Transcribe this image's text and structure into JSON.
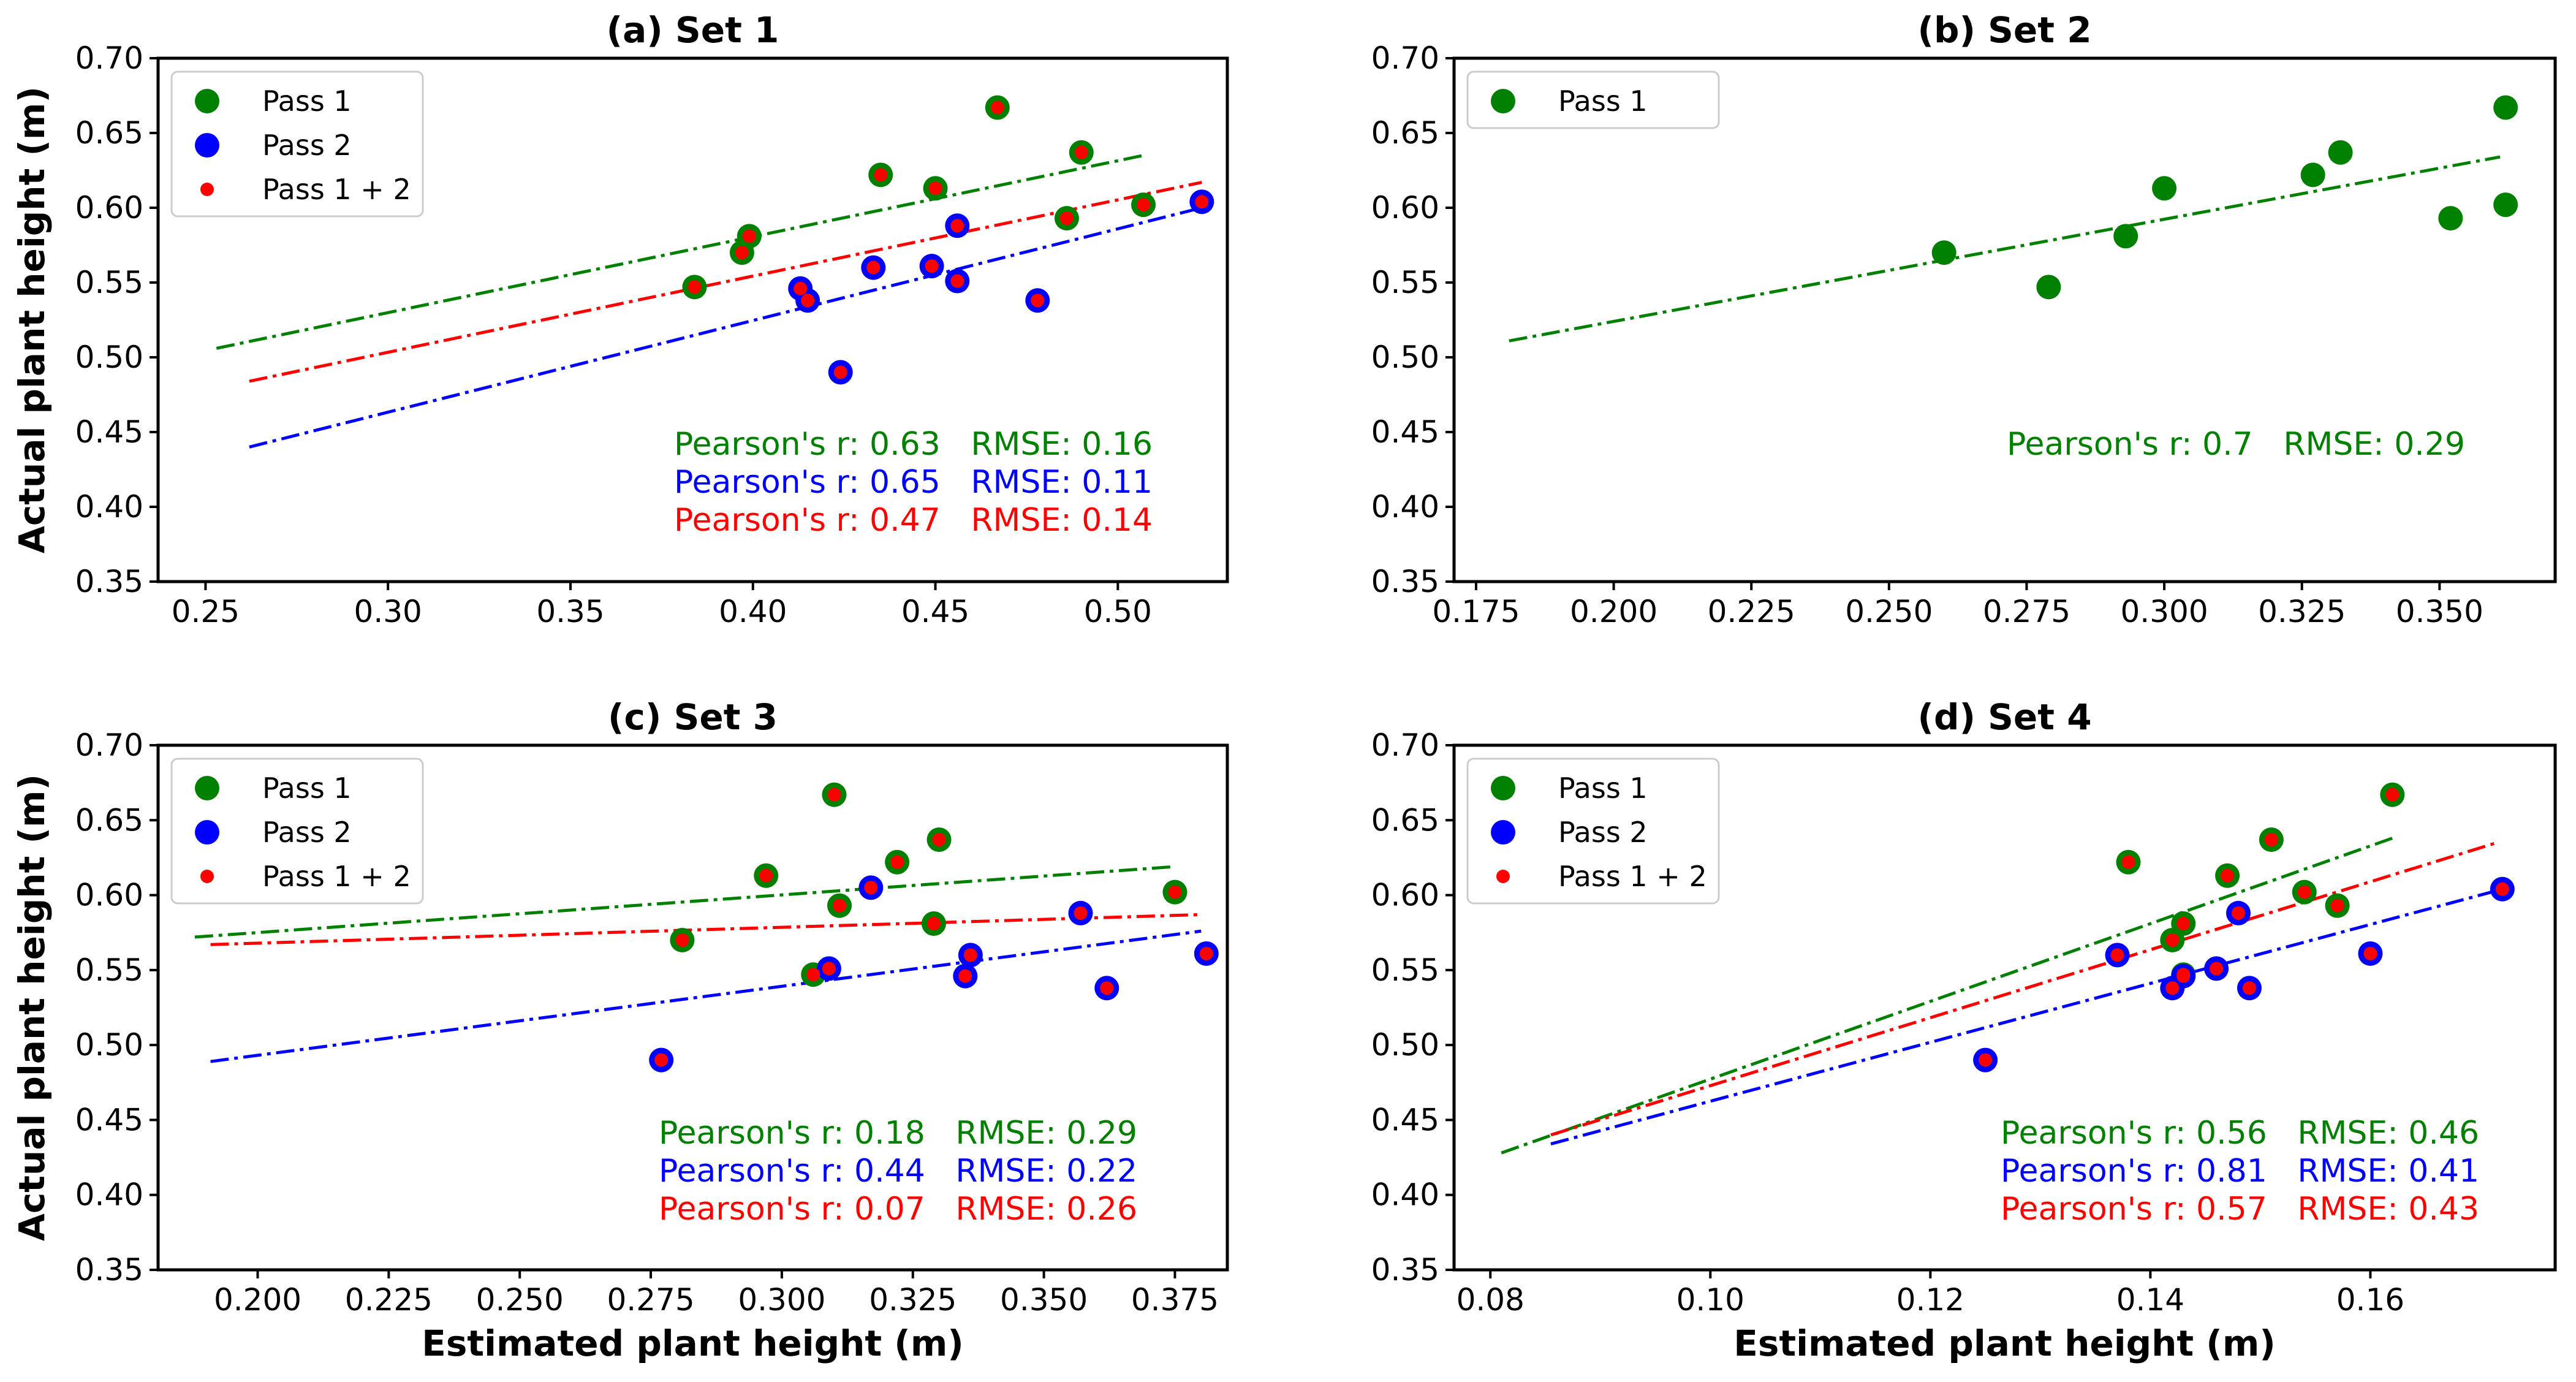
{
  "figure": {
    "ylabel": "Actual plant height (m)",
    "xlabel": "Estimated plant height (m)"
  },
  "chart_data": [
    {
      "type": "scatter",
      "panel": "a",
      "title": "(a)  Set 1",
      "xlabel": "",
      "ylabel": "Actual plant height (m)",
      "xlim": [
        0.237,
        0.53
      ],
      "ylim": [
        0.35,
        0.7
      ],
      "xticks": [
        0.25,
        0.3,
        0.35,
        0.4,
        0.45,
        0.5
      ],
      "xtick_labels": [
        "0.25",
        "0.30",
        "0.35",
        "0.40",
        "0.45",
        "0.50"
      ],
      "yticks": [
        0.35,
        0.4,
        0.45,
        0.5,
        0.55,
        0.6,
        0.65,
        0.7
      ],
      "ytick_labels": [
        "0.35",
        "0.40",
        "0.45",
        "0.50",
        "0.55",
        "0.60",
        "0.65",
        "0.70"
      ],
      "legend_position": "top-left",
      "series": [
        {
          "name": "Pass 1",
          "color": "#008000",
          "points": [
            [
              0.384,
              0.547
            ],
            [
              0.397,
              0.57
            ],
            [
              0.399,
              0.581
            ],
            [
              0.435,
              0.622
            ],
            [
              0.45,
              0.613
            ],
            [
              0.467,
              0.667
            ],
            [
              0.486,
              0.593
            ],
            [
              0.49,
              0.637
            ],
            [
              0.507,
              0.602
            ]
          ]
        },
        {
          "name": "Pass 2",
          "color": "#0000ff",
          "points": [
            [
              0.413,
              0.546
            ],
            [
              0.415,
              0.538
            ],
            [
              0.424,
              0.49
            ],
            [
              0.433,
              0.56
            ],
            [
              0.449,
              0.561
            ],
            [
              0.456,
              0.551
            ],
            [
              0.456,
              0.588
            ],
            [
              0.478,
              0.538
            ],
            [
              0.523,
              0.604
            ]
          ]
        },
        {
          "name": "Pass 1 + 2",
          "color": "#ff0000",
          "points": [
            [
              0.384,
              0.547
            ],
            [
              0.397,
              0.57
            ],
            [
              0.399,
              0.581
            ],
            [
              0.435,
              0.622
            ],
            [
              0.45,
              0.613
            ],
            [
              0.467,
              0.667
            ],
            [
              0.486,
              0.593
            ],
            [
              0.49,
              0.637
            ],
            [
              0.507,
              0.602
            ],
            [
              0.413,
              0.546
            ],
            [
              0.415,
              0.538
            ],
            [
              0.424,
              0.49
            ],
            [
              0.433,
              0.56
            ],
            [
              0.449,
              0.561
            ],
            [
              0.456,
              0.551
            ],
            [
              0.456,
              0.588
            ],
            [
              0.478,
              0.538
            ],
            [
              0.523,
              0.604
            ]
          ]
        }
      ],
      "fit_lines": [
        {
          "color": "#008000",
          "x": [
            0.253,
            0.507
          ],
          "y": [
            0.506,
            0.635
          ]
        },
        {
          "color": "#0000ff",
          "x": [
            0.262,
            0.523
          ],
          "y": [
            0.44,
            0.6
          ]
        },
        {
          "color": "#ff0000",
          "x": [
            0.262,
            0.523
          ],
          "y": [
            0.484,
            0.617
          ]
        }
      ],
      "stats": [
        {
          "text": "Pearson's r: 0.63   RMSE: 0.16",
          "color": "#008000"
        },
        {
          "text": "Pearson's r: 0.65   RMSE: 0.11",
          "color": "#0000ff"
        },
        {
          "text": "Pearson's r: 0.47   RMSE: 0.14",
          "color": "#ff0000"
        }
      ]
    },
    {
      "type": "scatter",
      "panel": "b",
      "title": "(b)  Set 2",
      "xlabel": "",
      "ylabel": "",
      "xlim": [
        0.171,
        0.371
      ],
      "ylim": [
        0.35,
        0.7
      ],
      "xticks": [
        0.175,
        0.2,
        0.225,
        0.25,
        0.275,
        0.3,
        0.325,
        0.35
      ],
      "xtick_labels": [
        "0.175",
        "0.200",
        "0.225",
        "0.250",
        "0.275",
        "0.300",
        "0.325",
        "0.350"
      ],
      "yticks": [
        0.35,
        0.4,
        0.45,
        0.5,
        0.55,
        0.6,
        0.65,
        0.7
      ],
      "ytick_labels": [
        "0.35",
        "0.40",
        "0.45",
        "0.50",
        "0.55",
        "0.60",
        "0.65",
        "0.70"
      ],
      "legend_position": "top-left",
      "series": [
        {
          "name": "Pass 1",
          "color": "#008000",
          "points": [
            [
              0.26,
              0.57
            ],
            [
              0.279,
              0.547
            ],
            [
              0.293,
              0.581
            ],
            [
              0.3,
              0.613
            ],
            [
              0.327,
              0.622
            ],
            [
              0.332,
              0.637
            ],
            [
              0.352,
              0.593
            ],
            [
              0.362,
              0.667
            ],
            [
              0.362,
              0.602
            ]
          ]
        }
      ],
      "fit_lines": [
        {
          "color": "#008000",
          "x": [
            0.181,
            0.361
          ],
          "y": [
            0.511,
            0.634
          ]
        }
      ],
      "stats": [
        {
          "text": "Pearson's r: 0.7   RMSE: 0.29",
          "color": "#008000"
        }
      ]
    },
    {
      "type": "scatter",
      "panel": "c",
      "title": "(c)  Set 3",
      "xlabel": "Estimated plant height (m)",
      "ylabel": "Actual plant height (m)",
      "xlim": [
        0.181,
        0.385
      ],
      "ylim": [
        0.35,
        0.7
      ],
      "xticks": [
        0.2,
        0.225,
        0.25,
        0.275,
        0.3,
        0.325,
        0.35,
        0.375
      ],
      "xtick_labels": [
        "0.200",
        "0.225",
        "0.250",
        "0.275",
        "0.300",
        "0.325",
        "0.350",
        "0.375"
      ],
      "yticks": [
        0.35,
        0.4,
        0.45,
        0.5,
        0.55,
        0.6,
        0.65,
        0.7
      ],
      "ytick_labels": [
        "0.35",
        "0.40",
        "0.45",
        "0.50",
        "0.55",
        "0.60",
        "0.65",
        "0.70"
      ],
      "legend_position": "top-left",
      "series": [
        {
          "name": "Pass 1",
          "color": "#008000",
          "points": [
            [
              0.281,
              0.57
            ],
            [
              0.297,
              0.613
            ],
            [
              0.306,
              0.547
            ],
            [
              0.31,
              0.667
            ],
            [
              0.311,
              0.593
            ],
            [
              0.322,
              0.622
            ],
            [
              0.329,
              0.581
            ],
            [
              0.33,
              0.637
            ],
            [
              0.375,
              0.602
            ]
          ]
        },
        {
          "name": "Pass 2",
          "color": "#0000ff",
          "points": [
            [
              0.277,
              0.49
            ],
            [
              0.309,
              0.551
            ],
            [
              0.317,
              0.605
            ],
            [
              0.335,
              0.546
            ],
            [
              0.336,
              0.56
            ],
            [
              0.357,
              0.588
            ],
            [
              0.362,
              0.538
            ],
            [
              0.381,
              0.561
            ]
          ]
        },
        {
          "name": "Pass 1 + 2",
          "color": "#ff0000",
          "points": [
            [
              0.281,
              0.57
            ],
            [
              0.297,
              0.613
            ],
            [
              0.306,
              0.547
            ],
            [
              0.31,
              0.667
            ],
            [
              0.311,
              0.593
            ],
            [
              0.322,
              0.622
            ],
            [
              0.329,
              0.581
            ],
            [
              0.33,
              0.637
            ],
            [
              0.375,
              0.602
            ],
            [
              0.277,
              0.49
            ],
            [
              0.309,
              0.551
            ],
            [
              0.317,
              0.605
            ],
            [
              0.335,
              0.546
            ],
            [
              0.336,
              0.56
            ],
            [
              0.357,
              0.588
            ],
            [
              0.362,
              0.538
            ],
            [
              0.381,
              0.561
            ]
          ]
        }
      ],
      "fit_lines": [
        {
          "color": "#008000",
          "x": [
            0.188,
            0.375
          ],
          "y": [
            0.572,
            0.619
          ]
        },
        {
          "color": "#0000ff",
          "x": [
            0.191,
            0.38
          ],
          "y": [
            0.489,
            0.576
          ]
        },
        {
          "color": "#ff0000",
          "x": [
            0.191,
            0.38
          ],
          "y": [
            0.567,
            0.587
          ]
        }
      ],
      "stats": [
        {
          "text": "Pearson's r: 0.18   RMSE: 0.29",
          "color": "#008000"
        },
        {
          "text": "Pearson's r: 0.44   RMSE: 0.22",
          "color": "#0000ff"
        },
        {
          "text": "Pearson's r: 0.07   RMSE: 0.26",
          "color": "#ff0000"
        }
      ]
    },
    {
      "type": "scatter",
      "panel": "d",
      "title": "(d)  Set 4",
      "xlabel": "Estimated plant height (m)",
      "ylabel": "",
      "xlim": [
        0.0767,
        0.1768
      ],
      "ylim": [
        0.35,
        0.7
      ],
      "xticks": [
        0.08,
        0.1,
        0.12,
        0.14,
        0.16
      ],
      "xtick_labels": [
        "0.08",
        "0.10",
        "0.12",
        "0.14",
        "0.16"
      ],
      "yticks": [
        0.35,
        0.4,
        0.45,
        0.5,
        0.55,
        0.6,
        0.65,
        0.7
      ],
      "ytick_labels": [
        "0.35",
        "0.40",
        "0.45",
        "0.50",
        "0.55",
        "0.60",
        "0.65",
        "0.70"
      ],
      "legend_position": "top-left",
      "series": [
        {
          "name": "Pass 1",
          "color": "#008000",
          "points": [
            [
              0.138,
              0.622
            ],
            [
              0.142,
              0.57
            ],
            [
              0.143,
              0.581
            ],
            [
              0.143,
              0.547
            ],
            [
              0.147,
              0.613
            ],
            [
              0.151,
              0.637
            ],
            [
              0.154,
              0.602
            ],
            [
              0.157,
              0.593
            ],
            [
              0.162,
              0.667
            ]
          ]
        },
        {
          "name": "Pass 2",
          "color": "#0000ff",
          "points": [
            [
              0.125,
              0.49
            ],
            [
              0.137,
              0.56
            ],
            [
              0.142,
              0.538
            ],
            [
              0.143,
              0.546
            ],
            [
              0.146,
              0.551
            ],
            [
              0.148,
              0.588
            ],
            [
              0.149,
              0.538
            ],
            [
              0.16,
              0.561
            ],
            [
              0.172,
              0.604
            ]
          ]
        },
        {
          "name": "Pass 1 + 2",
          "color": "#ff0000",
          "points": [
            [
              0.138,
              0.622
            ],
            [
              0.142,
              0.57
            ],
            [
              0.143,
              0.581
            ],
            [
              0.143,
              0.547
            ],
            [
              0.147,
              0.613
            ],
            [
              0.151,
              0.637
            ],
            [
              0.154,
              0.602
            ],
            [
              0.157,
              0.593
            ],
            [
              0.162,
              0.667
            ],
            [
              0.125,
              0.49
            ],
            [
              0.137,
              0.56
            ],
            [
              0.142,
              0.538
            ],
            [
              0.143,
              0.546
            ],
            [
              0.146,
              0.551
            ],
            [
              0.148,
              0.588
            ],
            [
              0.149,
              0.538
            ],
            [
              0.16,
              0.561
            ],
            [
              0.172,
              0.604
            ]
          ]
        }
      ],
      "fit_lines": [
        {
          "color": "#008000",
          "x": [
            0.081,
            0.162
          ],
          "y": [
            0.428,
            0.638
          ]
        },
        {
          "color": "#0000ff",
          "x": [
            0.0855,
            0.1715
          ],
          "y": [
            0.434,
            0.603
          ]
        },
        {
          "color": "#ff0000",
          "x": [
            0.0855,
            0.1715
          ],
          "y": [
            0.44,
            0.635
          ]
        }
      ],
      "stats": [
        {
          "text": "Pearson's r: 0.56   RMSE: 0.46",
          "color": "#008000"
        },
        {
          "text": "Pearson's r: 0.81   RMSE: 0.41",
          "color": "#0000ff"
        },
        {
          "text": "Pearson's r: 0.57   RMSE: 0.43",
          "color": "#ff0000"
        }
      ]
    }
  ]
}
